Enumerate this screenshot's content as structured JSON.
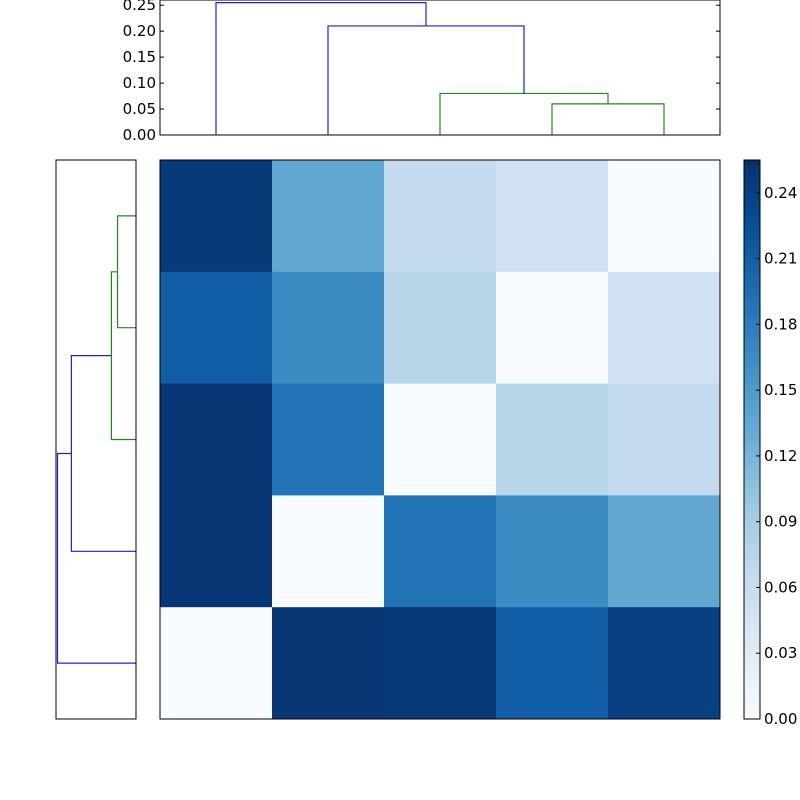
{
  "colors": {
    "cluster_main": "#1f1fd8",
    "cluster_green": "#1a8c1a",
    "axis": "#000000",
    "heatmap_colormap": "Blues"
  },
  "chart_data": [
    {
      "type": "dendrogram",
      "orientation": "top",
      "ylim": [
        0,
        0.26
      ],
      "yticks": [
        "0.00",
        "0.05",
        "0.10",
        "0.15",
        "0.20",
        "0.25"
      ],
      "leaves": 5,
      "links": [
        {
          "left": 3,
          "right": 4,
          "height": 0.06,
          "color": "cluster_green"
        },
        {
          "left": 2,
          "right": 3.5,
          "height": 0.08,
          "color": "cluster_green"
        },
        {
          "left": 1,
          "right": 2.75,
          "height": 0.21,
          "color": "cluster_main"
        },
        {
          "left": 0,
          "right": 1.875,
          "height": 0.255,
          "color": "cluster_main"
        }
      ]
    },
    {
      "type": "dendrogram",
      "orientation": "left",
      "leaves": 5,
      "links": [
        {
          "left": 3,
          "right": 4,
          "height": 0.06,
          "color": "cluster_green"
        },
        {
          "left": 2,
          "right": 3.5,
          "height": 0.08,
          "color": "cluster_green"
        },
        {
          "left": 1,
          "right": 2.75,
          "height": 0.21,
          "color": "cluster_main"
        },
        {
          "left": 0,
          "right": 1.875,
          "height": 0.255,
          "color": "cluster_main"
        }
      ]
    },
    {
      "type": "heatmap",
      "colormap": "Blues",
      "vmin": 0,
      "vmax": 0.255,
      "rows": 5,
      "cols": 5,
      "values": [
        [
          0.245,
          0.135,
          0.065,
          0.05,
          0.0
        ],
        [
          0.21,
          0.165,
          0.075,
          0.0,
          0.05
        ],
        [
          0.25,
          0.19,
          0.0,
          0.075,
          0.065
        ],
        [
          0.25,
          0.0,
          0.19,
          0.165,
          0.135
        ],
        [
          0.0,
          0.25,
          0.245,
          0.21,
          0.24
        ]
      ]
    },
    {
      "type": "colorbar",
      "colormap": "Blues",
      "range": [
        0,
        0.255
      ],
      "ticks": [
        "0.00",
        "0.03",
        "0.06",
        "0.09",
        "0.12",
        "0.15",
        "0.18",
        "0.21",
        "0.24"
      ]
    }
  ]
}
